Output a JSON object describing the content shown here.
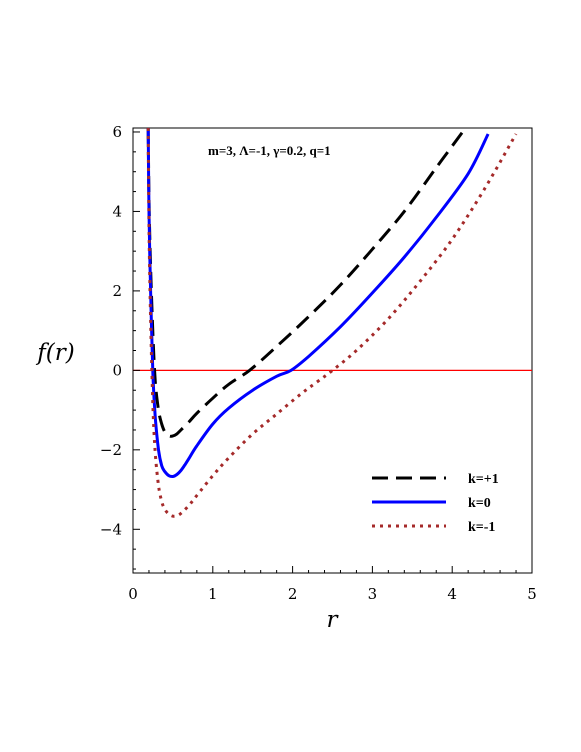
{
  "chart_data": {
    "type": "line",
    "xlabel": "r",
    "ylabel": "f(r)",
    "xlim": [
      0,
      5
    ],
    "ylim": [
      -5.1,
      6.1
    ],
    "grid": false,
    "x_ticks": [
      0,
      1,
      2,
      3,
      4,
      5
    ],
    "x_tick_labels": [
      "0",
      "1",
      "2",
      "3",
      "4",
      "5"
    ],
    "y_ticks": [
      -4,
      -2,
      0,
      2,
      4,
      6
    ],
    "y_tick_labels": [
      "−4",
      "−2",
      "0",
      "2",
      "4",
      "6"
    ],
    "annotation": "m=3, Λ=-1, γ=0.2, q=1",
    "legend_position": "bottom-right",
    "reference_line": {
      "y": 0,
      "color": "#ff0000"
    },
    "series": [
      {
        "name": "k=+1",
        "color": "#000000",
        "style": "dashed",
        "x": [
          0.19,
          0.2,
          0.22,
          0.25,
          0.28,
          0.32,
          0.36,
          0.4,
          0.45,
          0.5,
          0.55,
          0.6,
          0.7,
          0.8,
          1.0,
          1.2,
          1.46,
          1.8,
          2.2,
          2.6,
          3.0,
          3.4,
          3.8,
          4.13
        ],
        "y": [
          6.1,
          4.3,
          2.6,
          0.9,
          -0.3,
          -1.0,
          -1.35,
          -1.55,
          -1.65,
          -1.65,
          -1.6,
          -1.5,
          -1.3,
          -1.08,
          -0.7,
          -0.35,
          0.0,
          0.6,
          1.35,
          2.15,
          3.05,
          4.0,
          5.1,
          6.0
        ]
      },
      {
        "name": "k=0",
        "color": "#0000ff",
        "style": "solid",
        "x": [
          0.19,
          0.2,
          0.22,
          0.25,
          0.28,
          0.32,
          0.36,
          0.4,
          0.45,
          0.5,
          0.55,
          0.6,
          0.65,
          0.7,
          0.8,
          1.0,
          1.2,
          1.5,
          1.8,
          1.98,
          2.2,
          2.6,
          3.0,
          3.4,
          3.8,
          4.2,
          4.45
        ],
        "y": [
          6.1,
          4.0,
          2.0,
          -0.1,
          -1.2,
          -2.0,
          -2.4,
          -2.55,
          -2.65,
          -2.67,
          -2.62,
          -2.52,
          -2.38,
          -2.22,
          -1.9,
          -1.35,
          -0.95,
          -0.5,
          -0.15,
          0.0,
          0.35,
          1.1,
          1.95,
          2.85,
          3.85,
          4.95,
          5.95
        ]
      },
      {
        "name": "k=-1",
        "color": "#a52a2a",
        "style": "dotted",
        "x": [
          0.19,
          0.2,
          0.22,
          0.25,
          0.28,
          0.32,
          0.36,
          0.4,
          0.45,
          0.5,
          0.55,
          0.6,
          0.7,
          0.8,
          1.0,
          1.2,
          1.5,
          1.8,
          2.1,
          2.3,
          2.5,
          2.8,
          3.2,
          3.6,
          4.0,
          4.4,
          4.8
        ],
        "y": [
          6.1,
          3.6,
          1.3,
          -0.9,
          -2.1,
          -2.9,
          -3.3,
          -3.5,
          -3.62,
          -3.67,
          -3.66,
          -3.6,
          -3.4,
          -3.15,
          -2.65,
          -2.2,
          -1.6,
          -1.1,
          -0.6,
          -0.3,
          0.0,
          0.5,
          1.3,
          2.25,
          3.3,
          4.55,
          5.95
        ]
      }
    ]
  }
}
